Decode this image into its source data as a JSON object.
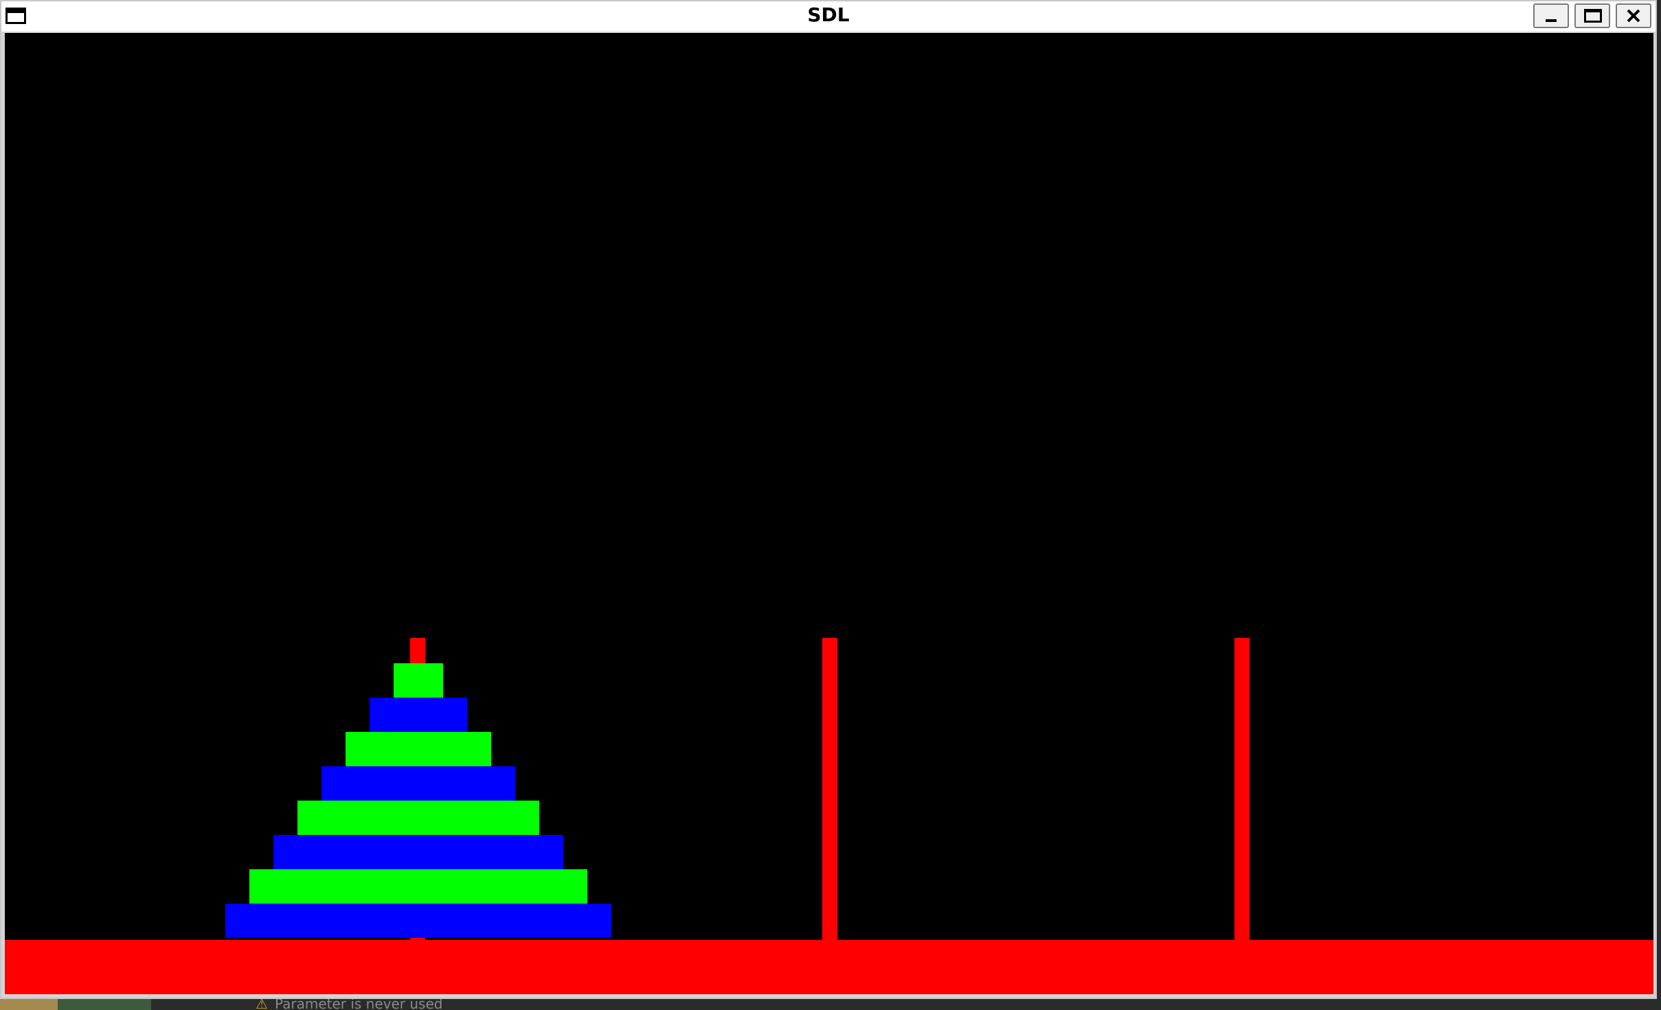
{
  "window": {
    "title": "SDL",
    "controls": [
      "minimize",
      "maximize",
      "close"
    ]
  },
  "game": {
    "background_color": "#000000",
    "base_color": "#ff0000",
    "peg_color": "#ff0000",
    "pegs": 3,
    "disks_on_peg_1": 8,
    "disk_colors_top_to_bottom": [
      "#00ff00",
      "#0000ff",
      "#00ff00",
      "#0000ff",
      "#00ff00",
      "#0000ff",
      "#00ff00",
      "#0000ff"
    ]
  },
  "desktop": {
    "partial_hint": "Parameter is never used"
  }
}
